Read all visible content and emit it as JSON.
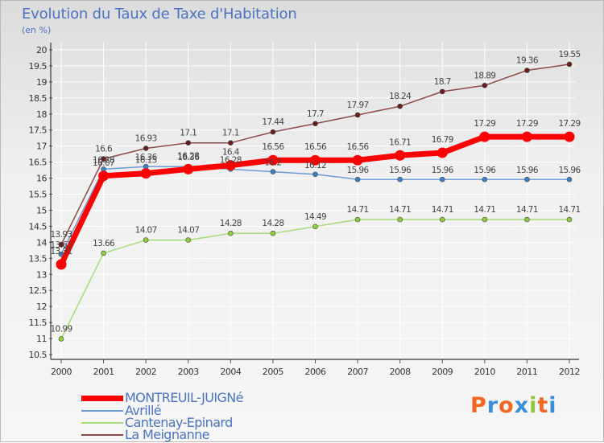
{
  "title": "Evolution du Taux de Taxe d'Habitation",
  "unit_label": "(en %)",
  "logo_text": "Proxiti",
  "chart_data": {
    "type": "line",
    "title": "Evolution du Taux de Taxe d'Habitation",
    "ylabel": "(en %)",
    "xlabel": "",
    "ylim": [
      10.5,
      20
    ],
    "yticks": [
      10.5,
      11,
      11.5,
      12,
      12.5,
      13,
      13.5,
      14,
      14.5,
      15,
      15.5,
      16,
      16.5,
      17,
      17.5,
      18,
      18.5,
      19,
      19.5,
      20
    ],
    "grid": true,
    "legend_position": "bottom-left",
    "x": [
      "2000",
      "2001",
      "2002",
      "2003",
      "2004",
      "2005",
      "2006",
      "2007",
      "2008",
      "2009",
      "2010",
      "2011",
      "2012"
    ],
    "series": [
      {
        "name": "MONTREUIL-JUIGNé",
        "color": "#ff0000",
        "marker": "#ff0000",
        "values": [
          13.31,
          16.07,
          16.15,
          16.28,
          16.4,
          16.56,
          16.56,
          16.56,
          16.71,
          16.79,
          17.29,
          17.29,
          17.29
        ]
      },
      {
        "name": "Avrillé",
        "color": "#6b9bd1",
        "marker": "#3d82c8",
        "values": [
          13.63,
          16.28,
          16.36,
          16.36,
          16.28,
          16.2,
          16.12,
          15.96,
          15.96,
          15.96,
          15.96,
          15.96,
          15.96
        ]
      },
      {
        "name": "Cantenay-Epinard",
        "color": "#a6dc7a",
        "marker": "#8ccf3a",
        "values": [
          10.99,
          13.66,
          14.07,
          14.07,
          14.28,
          14.28,
          14.49,
          14.71,
          14.71,
          14.71,
          14.71,
          14.71,
          14.71
        ]
      },
      {
        "name": "La Meignanne",
        "color": "#8c4a4a",
        "marker": "#6a1d1d",
        "values": [
          13.93,
          16.6,
          16.93,
          17.1,
          17.1,
          17.44,
          17.7,
          17.97,
          18.24,
          18.7,
          18.89,
          19.36,
          19.55
        ]
      }
    ]
  }
}
